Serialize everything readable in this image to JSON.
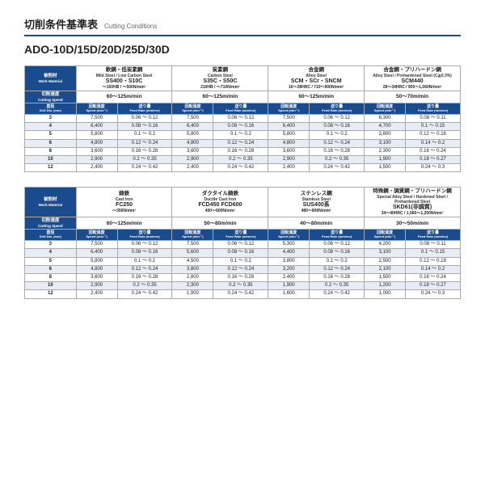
{
  "header": {
    "title_jp": "切削条件基準表",
    "title_en": "Cutting Conditions",
    "model": "ADO-10D/15D/20D/25D/30D"
  },
  "labels": {
    "work_jp": "被削材",
    "work_en": "Work Material",
    "cspeed_jp": "切削速度",
    "cspeed_en": "Cutting Speed",
    "dia_jp": "直径",
    "dia_en": "Drill Dia. (mm)",
    "rpm_jp": "回転速度",
    "rpm_en": "Speed (min⁻¹)",
    "feed_jp": "送り量",
    "feed_en": "Feed Rate (mm/rev)"
  },
  "tables": [
    {
      "materials": [
        {
          "jp": "軟鋼・低炭素鋼",
          "en": "Mild Steel / Low Carbon Steel",
          "code": "SS400・S10C",
          "spec": "～150HB / ～500N/mm²",
          "speed": "60～125m/min"
        },
        {
          "jp": "炭素鋼",
          "en": "Carbon Steel",
          "code": "S35C・S50C",
          "spec": "210HB / ～710N/mm²",
          "speed": "60～125m/min"
        },
        {
          "jp": "合金鋼",
          "en": "Alloy Steel",
          "code": "SCM・SCr・SNCM",
          "spec": "16～28HRC / 710～900N/mm²",
          "speed": "60～125m/min"
        },
        {
          "jp": "合金鋼・プリハードン鋼",
          "en": "Alloy Steel / Prehardened Steel (C≧0.3%)",
          "code": "SCM440",
          "spec": "28～34HRC / 900～1,060N/mm²",
          "speed": "50～70m/min"
        }
      ],
      "rows": [
        {
          "dia": "3",
          "c": [
            [
              "7,500",
              "0.06 ～ 0.12"
            ],
            [
              "7,500",
              "0.06 ～ 0.12"
            ],
            [
              "7,500",
              "0.06 ～ 0.12"
            ],
            [
              "6,300",
              "0.08 ～ 0.11"
            ]
          ]
        },
        {
          "dia": "4",
          "c": [
            [
              "6,400",
              "0.08 ～ 0.16"
            ],
            [
              "6,400",
              "0.08 ～ 0.16"
            ],
            [
              "6,400",
              "0.08 ～ 0.16"
            ],
            [
              "4,700",
              "0.1 ～ 0.15"
            ]
          ]
        },
        {
          "dia": "5",
          "c": [
            [
              "5,800",
              "0.1 ～ 0.2"
            ],
            [
              "5,800",
              "0.1 ～ 0.2"
            ],
            [
              "5,800",
              "0.1 ～ 0.2"
            ],
            [
              "3,800",
              "0.12 ～ 0.18"
            ]
          ]
        },
        {
          "dia": "6",
          "c": [
            [
              "4,800",
              "0.12 ～ 0.24"
            ],
            [
              "4,800",
              "0.12 ～ 0.24"
            ],
            [
              "4,800",
              "0.12 ～ 0.24"
            ],
            [
              "3,100",
              "0.14 ～ 0.2"
            ]
          ]
        },
        {
          "dia": "8",
          "c": [
            [
              "3,600",
              "0.16 ～ 0.28"
            ],
            [
              "3,600",
              "0.16 ～ 0.28"
            ],
            [
              "3,600",
              "0.16 ～ 0.28"
            ],
            [
              "2,300",
              "0.16 ～ 0.24"
            ]
          ]
        },
        {
          "dia": "10",
          "c": [
            [
              "2,900",
              "0.2 ～ 0.35"
            ],
            [
              "2,900",
              "0.2 ～ 0.35"
            ],
            [
              "2,900",
              "0.2 ～ 0.35"
            ],
            [
              "1,900",
              "0.18 ～ 0.27"
            ]
          ]
        },
        {
          "dia": "12",
          "c": [
            [
              "2,400",
              "0.24 ～ 0.42"
            ],
            [
              "2,400",
              "0.24 ～ 0.42"
            ],
            [
              "2,400",
              "0.24 ～ 0.42"
            ],
            [
              "1,500",
              "0.24 ～ 0.3"
            ]
          ]
        }
      ]
    },
    {
      "materials": [
        {
          "jp": "鋳鉄",
          "en": "Cast Iron",
          "code": "FC250",
          "spec": "～350N/mm²",
          "speed": "60～125m/min"
        },
        {
          "jp": "ダクタイル鋳鉄",
          "en": "Ductile Cast Iron",
          "code": "FCD450 FCD600",
          "spec": "400～600N/mm²",
          "speed": "50～80m/min"
        },
        {
          "jp": "ステンレス鋼",
          "en": "Stainless Steel",
          "code": "SUS400系",
          "spec": "480～800N/mm²",
          "speed": "40～80m/min"
        },
        {
          "jp": "特殊鋼・調質鋼・プリハードン鋼",
          "en": "Special Alloy Steel / Hardened Steel / Prehardened Steel",
          "code": "SKD61(非調質)",
          "spec": "34～40HRC / 1,060～1,250N/mm²",
          "speed": "30～50m/min"
        }
      ],
      "rows": [
        {
          "dia": "3",
          "c": [
            [
              "7,500",
              "0.06 ～ 0.12"
            ],
            [
              "7,500",
              "0.06 ～ 0.12"
            ],
            [
              "5,300",
              "0.06 ～ 0.12"
            ],
            [
              "4,200",
              "0.08 ～ 0.11"
            ]
          ]
        },
        {
          "dia": "4",
          "c": [
            [
              "6,400",
              "0.08 ～ 0.16"
            ],
            [
              "5,600",
              "0.08 ～ 0.16"
            ],
            [
              "4,400",
              "0.08 ～ 0.16"
            ],
            [
              "3,100",
              "0.1 ～ 0.15"
            ]
          ]
        },
        {
          "dia": "5",
          "c": [
            [
              "5,800",
              "0.1 ～ 0.2"
            ],
            [
              "4,500",
              "0.1 ～ 0.2"
            ],
            [
              "3,800",
              "0.1 ～ 0.2"
            ],
            [
              "2,500",
              "0.12 ～ 0.18"
            ]
          ]
        },
        {
          "dia": "6",
          "c": [
            [
              "4,800",
              "0.12 ～ 0.24"
            ],
            [
              "3,800",
              "0.12 ～ 0.24"
            ],
            [
              "3,200",
              "0.12 ～ 0.24"
            ],
            [
              "2,100",
              "0.14 ～ 0.2"
            ]
          ]
        },
        {
          "dia": "8",
          "c": [
            [
              "3,600",
              "0.16 ～ 0.28"
            ],
            [
              "2,800",
              "0.16 ～ 0.28"
            ],
            [
              "2,400",
              "0.16 ～ 0.28"
            ],
            [
              "1,500",
              "0.16 ～ 0.24"
            ]
          ]
        },
        {
          "dia": "10",
          "c": [
            [
              "2,900",
              "0.2 ～ 0.35"
            ],
            [
              "2,300",
              "0.2 ～ 0.35"
            ],
            [
              "1,900",
              "0.2 ～ 0.35"
            ],
            [
              "1,200",
              "0.18 ～ 0.27"
            ]
          ]
        },
        {
          "dia": "12",
          "c": [
            [
              "2,400",
              "0.24 ～ 0.42"
            ],
            [
              "1,900",
              "0.24 ～ 0.42"
            ],
            [
              "1,600",
              "0.24 ～ 0.42"
            ],
            [
              "1,000",
              "0.24 ～ 0.3"
            ]
          ]
        }
      ]
    }
  ]
}
